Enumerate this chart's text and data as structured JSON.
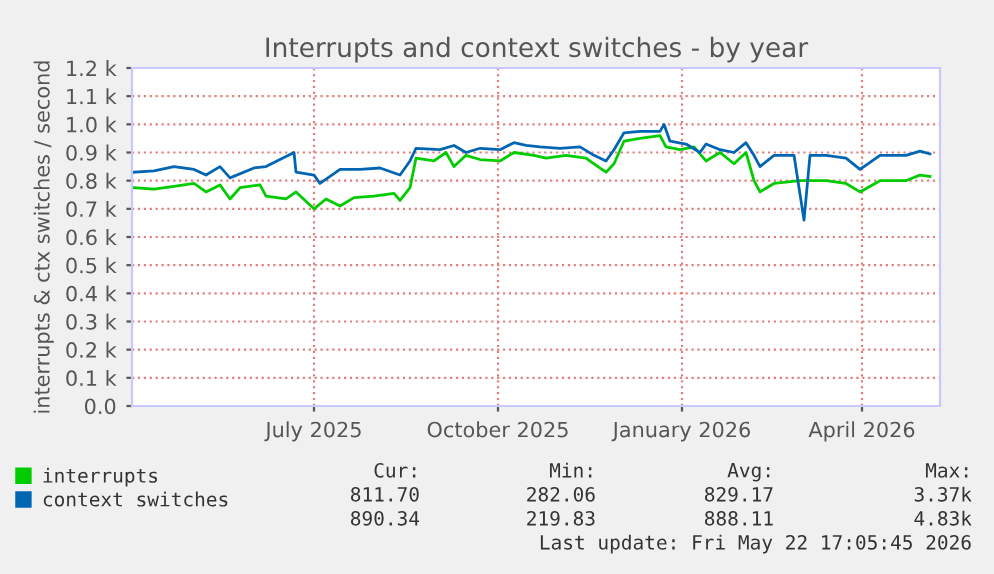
{
  "chart_data": {
    "type": "line",
    "title": "Interrupts and context switches - by year",
    "ylabel": "interrupts & ctx switches / second",
    "xlim": [
      "2025-04-01",
      "2026-05-10"
    ],
    "xticks": [
      {
        "value": "2025-07-01",
        "label": "July 2025"
      },
      {
        "value": "2025-10-01",
        "label": "October 2025"
      },
      {
        "value": "2026-01-01",
        "label": "January 2026"
      },
      {
        "value": "2026-04-01",
        "label": "April 2026"
      }
    ],
    "ylim": [
      0,
      1200
    ],
    "yticks": [
      {
        "value": 0,
        "label": "0.0"
      },
      {
        "value": 100,
        "label": "0.1 k"
      },
      {
        "value": 200,
        "label": "0.2 k"
      },
      {
        "value": 300,
        "label": "0.3 k"
      },
      {
        "value": 400,
        "label": "0.4 k"
      },
      {
        "value": 500,
        "label": "0.5 k"
      },
      {
        "value": 600,
        "label": "0.6 k"
      },
      {
        "value": 700,
        "label": "0.7 k"
      },
      {
        "value": 800,
        "label": "0.8 k"
      },
      {
        "value": 900,
        "label": "0.9 k"
      },
      {
        "value": 1000,
        "label": "1.0 k"
      },
      {
        "value": 1100,
        "label": "1.1 k"
      },
      {
        "value": 1200,
        "label": "1.2 k"
      }
    ],
    "grid": true,
    "legend": "bottom left",
    "series": [
      {
        "name": "interrupts",
        "color": "#00cc00",
        "x": [
          "2025-04-02",
          "2025-04-12",
          "2025-04-22",
          "2025-05-02",
          "2025-05-08",
          "2025-05-15",
          "2025-05-20",
          "2025-05-25",
          "2025-06-04",
          "2025-06-07",
          "2025-06-17",
          "2025-06-22",
          "2025-07-01",
          "2025-07-07",
          "2025-07-14",
          "2025-07-21",
          "2025-07-31",
          "2025-08-10",
          "2025-08-13",
          "2025-08-18",
          "2025-08-21",
          "2025-08-30",
          "2025-09-05",
          "2025-09-09",
          "2025-09-15",
          "2025-09-22",
          "2025-10-02",
          "2025-10-09",
          "2025-10-19",
          "2025-10-25",
          "2025-11-04",
          "2025-11-14",
          "2025-11-18",
          "2025-11-24",
          "2025-11-28",
          "2025-12-03",
          "2025-12-11",
          "2025-12-21",
          "2025-12-24",
          "2025-12-31",
          "2026-01-07",
          "2026-01-13",
          "2026-01-20",
          "2026-01-27",
          "2026-02-02",
          "2026-02-06",
          "2026-02-09",
          "2026-02-16",
          "2026-03-01",
          "2026-03-14",
          "2026-03-24",
          "2026-03-31",
          "2026-04-10",
          "2026-04-23",
          "2026-04-30",
          "2026-05-05"
        ],
        "values": [
          775,
          770,
          780,
          790,
          760,
          785,
          735,
          775,
          785,
          745,
          735,
          760,
          700,
          735,
          710,
          740,
          745,
          755,
          730,
          775,
          880,
          870,
          900,
          850,
          890,
          875,
          870,
          900,
          890,
          880,
          890,
          880,
          860,
          830,
          860,
          940,
          950,
          960,
          920,
          910,
          920,
          870,
          900,
          860,
          900,
          800,
          760,
          790,
          800,
          800,
          790,
          760,
          800,
          800,
          820,
          815
        ]
      },
      {
        "name": "context switches",
        "color": "#0066b3",
        "x": [
          "2025-04-02",
          "2025-04-12",
          "2025-04-22",
          "2025-05-02",
          "2025-05-08",
          "2025-05-15",
          "2025-05-20",
          "2025-06-01",
          "2025-06-07",
          "2025-06-21",
          "2025-06-22",
          "2025-07-01",
          "2025-07-04",
          "2025-07-14",
          "2025-07-24",
          "2025-08-03",
          "2025-08-13",
          "2025-08-18",
          "2025-08-21",
          "2025-09-02",
          "2025-09-09",
          "2025-09-15",
          "2025-09-22",
          "2025-10-02",
          "2025-10-09",
          "2025-10-15",
          "2025-10-22",
          "2025-11-01",
          "2025-11-11",
          "2025-11-18",
          "2025-11-24",
          "2025-11-28",
          "2025-12-03",
          "2025-12-11",
          "2025-12-21",
          "2025-12-23",
          "2025-12-26",
          "2026-01-03",
          "2026-01-10",
          "2026-01-13",
          "2026-01-20",
          "2026-01-27",
          "2026-02-02",
          "2026-02-06",
          "2026-02-09",
          "2026-02-16",
          "2026-02-26",
          "2026-03-03",
          "2026-03-06",
          "2026-03-14",
          "2026-03-24",
          "2026-03-31",
          "2026-04-10",
          "2026-04-23",
          "2026-04-30",
          "2026-05-05"
        ],
        "values": [
          830,
          835,
          850,
          840,
          820,
          850,
          810,
          845,
          850,
          900,
          830,
          820,
          790,
          840,
          840,
          845,
          820,
          870,
          915,
          910,
          925,
          900,
          915,
          910,
          935,
          925,
          920,
          915,
          920,
          890,
          870,
          910,
          970,
          975,
          975,
          1000,
          940,
          930,
          900,
          930,
          910,
          900,
          935,
          890,
          850,
          890,
          890,
          660,
          890,
          890,
          880,
          840,
          890,
          890,
          905,
          895
        ]
      }
    ],
    "annotations": [
      "Cur:",
      "Min:",
      "Avg:",
      "Max:",
      "811.70",
      "282.06",
      "829.17",
      "3.37k",
      "890.34",
      "219.83",
      "888.11",
      "4.83k",
      "Last update: Fri May 22 17:05:45 2026"
    ]
  }
}
